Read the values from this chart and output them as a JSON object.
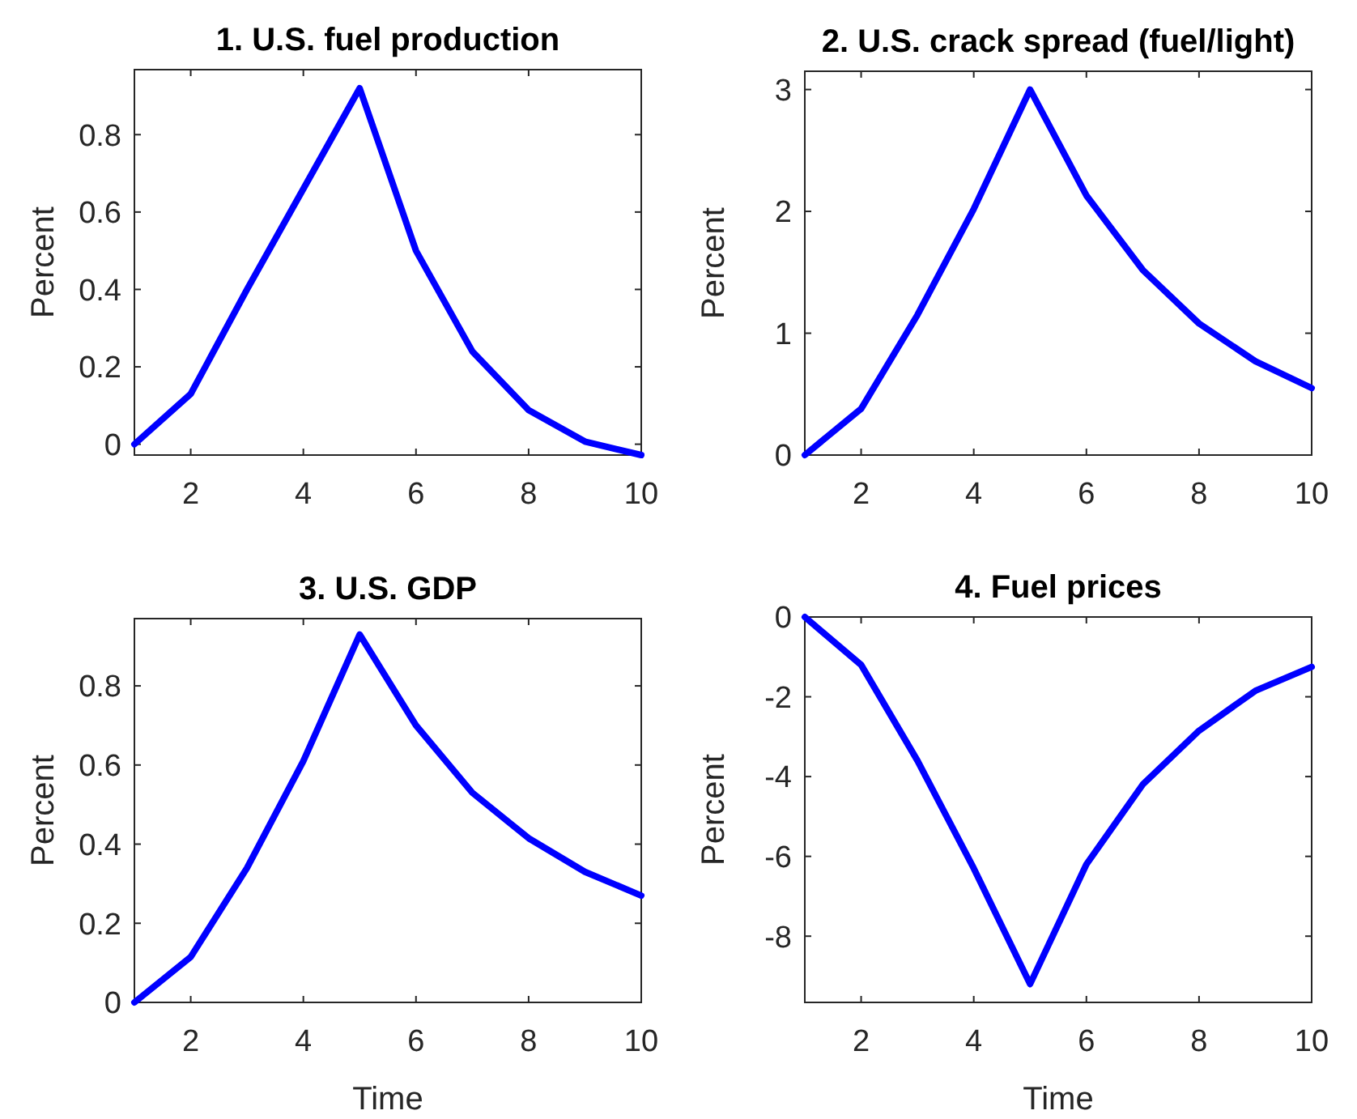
{
  "chart_data": [
    {
      "type": "line",
      "title": "1. U.S. fuel production",
      "ylabel": "Percent",
      "x": [
        1,
        2,
        3,
        4,
        5,
        6,
        7,
        8,
        9,
        10
      ],
      "xlim": [
        1,
        10
      ],
      "xticks": [
        2,
        4,
        6,
        8,
        10
      ],
      "ylim": [
        -0.028,
        0.968
      ],
      "yticks": [
        0,
        0.2,
        0.4,
        0.6,
        0.8
      ],
      "grid": false,
      "series": [
        {
          "color": "#0000ff",
          "values": [
            0,
            0.13,
            0.4,
            0.66,
            0.92,
            0.5,
            0.24,
            0.088,
            0.007,
            -0.028
          ]
        }
      ]
    },
    {
      "type": "line",
      "title": "2. U.S. crack spread (fuel/light)",
      "ylabel": "Percent",
      "x": [
        1,
        2,
        3,
        4,
        5,
        6,
        7,
        8,
        9,
        10
      ],
      "xlim": [
        1,
        10
      ],
      "xticks": [
        2,
        4,
        6,
        8,
        10
      ],
      "ylim": [
        0,
        3.15
      ],
      "yticks": [
        0,
        1,
        2,
        3
      ],
      "grid": false,
      "series": [
        {
          "color": "#0000ff",
          "values": [
            0,
            0.38,
            1.15,
            2.02,
            3.0,
            2.13,
            1.52,
            1.08,
            0.77,
            0.55
          ]
        }
      ]
    },
    {
      "type": "line",
      "title": "3. U.S. GDP",
      "xlabel": "Time",
      "ylabel": "Percent",
      "x": [
        1,
        2,
        3,
        4,
        5,
        6,
        7,
        8,
        9,
        10
      ],
      "xlim": [
        1,
        10
      ],
      "xticks": [
        2,
        4,
        6,
        8,
        10
      ],
      "ylim": [
        0,
        0.97
      ],
      "yticks": [
        0,
        0.2,
        0.4,
        0.6,
        0.8
      ],
      "grid": false,
      "series": [
        {
          "color": "#0000ff",
          "values": [
            0,
            0.115,
            0.34,
            0.61,
            0.93,
            0.7,
            0.53,
            0.415,
            0.33,
            0.27
          ]
        }
      ]
    },
    {
      "type": "line",
      "title": "4. Fuel prices",
      "xlabel": "Time",
      "ylabel": "Percent",
      "x": [
        1,
        2,
        3,
        4,
        5,
        6,
        7,
        8,
        9,
        10
      ],
      "xlim": [
        1,
        10
      ],
      "xticks": [
        2,
        4,
        6,
        8,
        10
      ],
      "ylim": [
        -9.66,
        0
      ],
      "yticks": [
        -8,
        -6,
        -4,
        -2,
        0
      ],
      "grid": false,
      "series": [
        {
          "color": "#0000ff",
          "values": [
            0,
            -1.2,
            -3.6,
            -6.3,
            -9.2,
            -6.2,
            -4.2,
            -2.85,
            -1.85,
            -1.25
          ]
        }
      ]
    }
  ]
}
